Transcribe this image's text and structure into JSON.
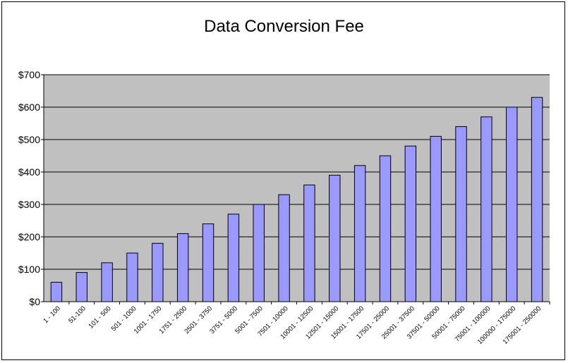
{
  "chart_data": {
    "type": "bar",
    "title": "Data Conversion Fee",
    "xlabel": "",
    "ylabel": "",
    "ylim": [
      0,
      700
    ],
    "yticks": [
      0,
      100,
      200,
      300,
      400,
      500,
      600,
      700
    ],
    "ytick_labels": [
      "$0",
      "$100",
      "$200",
      "$300",
      "$400",
      "$500",
      "$600",
      "$700"
    ],
    "grid": true,
    "legend": "none",
    "categories": [
      "1 - 100",
      "51-100",
      "101 - 500",
      "501 - 1000",
      "1001 - 1750",
      "1751 - 2500",
      "2501 - 3750",
      "3751 - 5000",
      "5001 - 7500",
      "7501 - 10000",
      "10001 - 12500",
      "12501 - 15000",
      "15001 - 17500",
      "17501 - 25000",
      "25001 - 37500",
      "37501 - 50000",
      "50001 - 75000",
      "75001 - 100000",
      "100000 - 175000",
      "175001 - 250000"
    ],
    "values": [
      60,
      90,
      120,
      150,
      180,
      210,
      240,
      270,
      300,
      330,
      360,
      390,
      420,
      450,
      480,
      510,
      540,
      570,
      600,
      630
    ],
    "colors": {
      "bar_fill": "#9999ff",
      "bar_stroke": "#000000",
      "plot_bg": "#c0c0c0",
      "grid": "#000000"
    }
  }
}
